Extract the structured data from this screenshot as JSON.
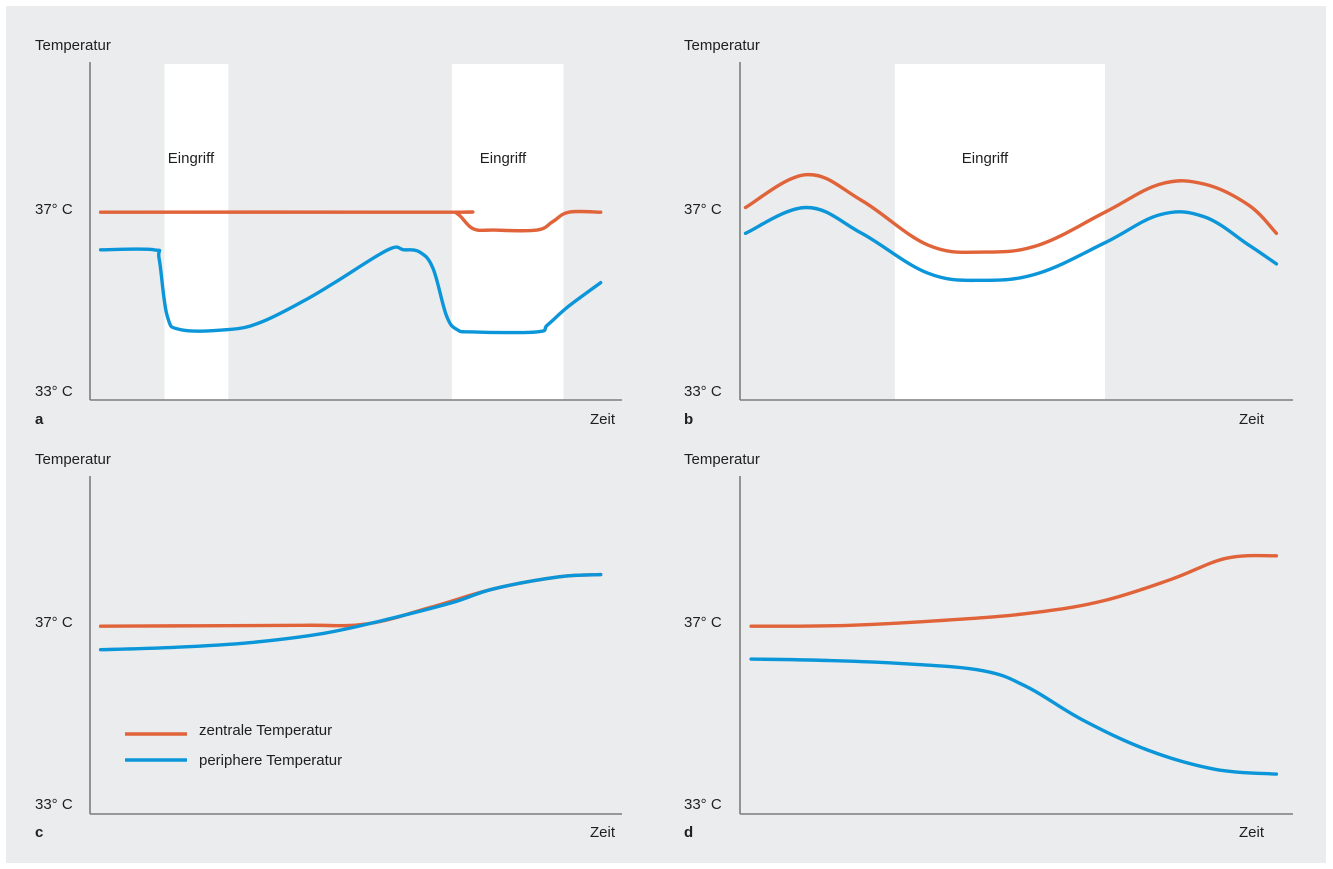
{
  "colors": {
    "central": "#e0633a",
    "peripheral": "#0b96d9",
    "background": "#ebeced",
    "band": "#ffffff"
  },
  "chart_data": [
    {
      "type": "line",
      "panel": "a",
      "ylabel": "Temperatur",
      "xlabel": "Zeit",
      "ytick_labels": [
        "37° C",
        "33° C"
      ],
      "ylim": [
        33,
        40.2
      ],
      "xlim": [
        0,
        10
      ],
      "bands": [
        {
          "start": 1.4,
          "end": 2.6,
          "label": "Eingriff"
        },
        {
          "start": 6.8,
          "end": 8.9,
          "label": "Eingriff"
        }
      ],
      "series": [
        {
          "key": "central",
          "x": [
            0.2,
            6.6,
            6.9,
            7.2,
            7.6,
            8.4,
            8.7,
            9.0,
            9.6
          ],
          "y": [
            37.0,
            37.0,
            36.97,
            36.65,
            36.62,
            36.62,
            36.8,
            37.0,
            37.0
          ]
        },
        {
          "key": "peripheral",
          "x": [
            0.2,
            1.2,
            1.3,
            1.45,
            1.7,
            2.6,
            3.2,
            4.0,
            4.6,
            5.6,
            5.9,
            6.2,
            6.45,
            6.7,
            6.9,
            7.2,
            8.4,
            8.6,
            9.0,
            9.6
          ],
          "y": [
            36.2,
            36.2,
            36.0,
            34.8,
            34.5,
            34.5,
            34.65,
            35.1,
            35.5,
            36.2,
            36.2,
            36.15,
            35.8,
            34.8,
            34.5,
            34.45,
            34.45,
            34.6,
            35.0,
            35.5
          ]
        }
      ]
    },
    {
      "type": "line",
      "panel": "b",
      "ylabel": "Temperatur",
      "xlabel": "Zeit",
      "ytick_labels": [
        "37° C",
        "33° C"
      ],
      "ylim": [
        33,
        40.2
      ],
      "xlim": [
        0,
        10
      ],
      "bands": [
        {
          "start": 2.8,
          "end": 6.6,
          "label": "Eingriff"
        }
      ],
      "series": [
        {
          "key": "central",
          "x": [
            0.1,
            1.2,
            2.2,
            3.4,
            4.4,
            5.4,
            6.6,
            7.6,
            8.4,
            9.2,
            9.7
          ],
          "y": [
            37.1,
            37.8,
            37.25,
            36.3,
            36.15,
            36.3,
            37.0,
            37.6,
            37.6,
            37.15,
            36.55
          ]
        },
        {
          "key": "peripheral",
          "x": [
            0.1,
            1.2,
            2.2,
            3.4,
            4.4,
            5.4,
            6.6,
            7.6,
            8.4,
            9.2,
            9.7
          ],
          "y": [
            36.55,
            37.1,
            36.55,
            35.7,
            35.55,
            35.7,
            36.35,
            36.95,
            36.9,
            36.3,
            35.9
          ]
        }
      ]
    },
    {
      "type": "line",
      "panel": "c",
      "ylabel": "Temperatur",
      "xlabel": "Zeit",
      "ytick_labels": [
        "37° C",
        "33° C"
      ],
      "ylim": [
        33,
        40.2
      ],
      "xlim": [
        0,
        10
      ],
      "bands": [],
      "legend": [
        "zentrale Temperatur",
        "periphere Temperatur"
      ],
      "series": [
        {
          "key": "central",
          "name": "zentrale Temperatur",
          "x": [
            0.2,
            2.0,
            4.0,
            5.2,
            6.4,
            7.6,
            8.8,
            9.6
          ],
          "y": [
            37.0,
            37.01,
            37.02,
            37.05,
            37.4,
            37.8,
            38.05,
            38.1
          ]
        },
        {
          "key": "peripheral",
          "name": "periphere Temperatur",
          "x": [
            0.2,
            1.6,
            3.0,
            4.4,
            5.6,
            6.8,
            7.6,
            8.8,
            9.6
          ],
          "y": [
            36.5,
            36.55,
            36.65,
            36.85,
            37.15,
            37.5,
            37.8,
            38.05,
            38.1
          ]
        }
      ]
    },
    {
      "type": "line",
      "panel": "d",
      "ylabel": "Temperatur",
      "xlabel": "Zeit",
      "ytick_labels": [
        "37° C",
        "33° C"
      ],
      "ylim": [
        33,
        40.2
      ],
      "xlim": [
        0,
        10
      ],
      "bands": [],
      "series": [
        {
          "key": "central",
          "x": [
            0.2,
            2.0,
            4.0,
            5.4,
            6.6,
            7.8,
            8.8,
            9.7
          ],
          "y": [
            37.0,
            37.02,
            37.15,
            37.3,
            37.55,
            38.0,
            38.45,
            38.5
          ]
        },
        {
          "key": "peripheral",
          "x": [
            0.2,
            1.6,
            3.0,
            4.4,
            5.2,
            6.2,
            7.4,
            8.6,
            9.7
          ],
          "y": [
            36.3,
            36.27,
            36.2,
            36.05,
            35.7,
            35.0,
            34.35,
            33.95,
            33.85
          ]
        }
      ]
    }
  ]
}
